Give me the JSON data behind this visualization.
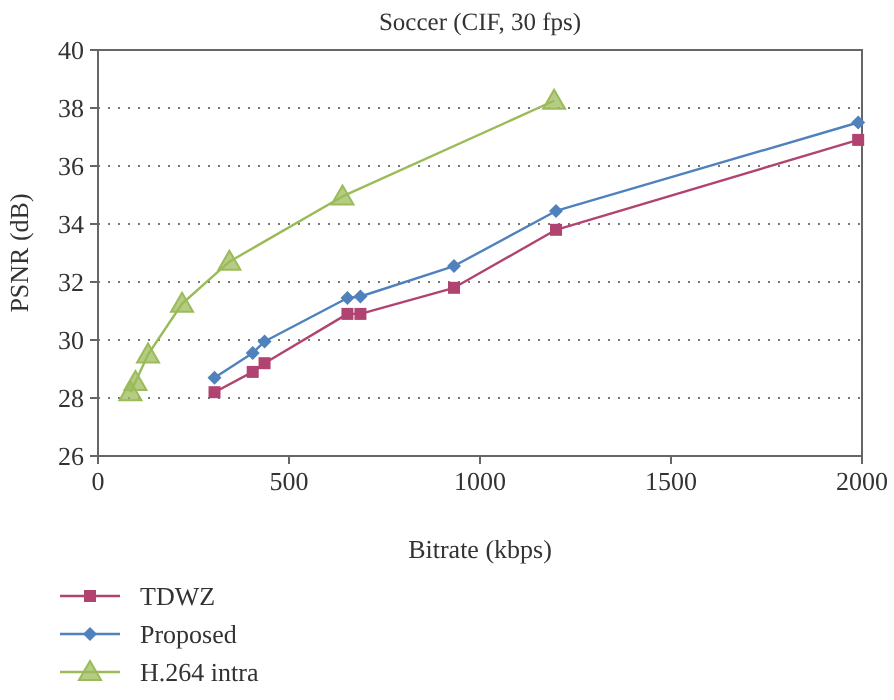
{
  "chart_data": {
    "type": "line",
    "title": "Soccer (CIF, 30 fps)",
    "xlabel": "Bitrate (kbps)",
    "ylabel": "PSNR (dB)",
    "xlim": [
      0,
      2000
    ],
    "xticks": [
      0,
      500,
      1000,
      1500,
      2000
    ],
    "ylim": [
      26,
      40
    ],
    "yticks": [
      26,
      28,
      30,
      32,
      34,
      36,
      38,
      40
    ],
    "grid": "y",
    "legend": "bottom",
    "series": [
      {
        "name": "TDWZ",
        "color": "#b0436f",
        "marker": "square",
        "x": [
          305,
          405,
          436,
          653,
          687,
          932,
          1199,
          1990
        ],
        "values": [
          28.2,
          28.9,
          29.2,
          30.9,
          30.9,
          31.8,
          33.8,
          36.9
        ]
      },
      {
        "name": "Proposed",
        "color": "#4f81bd",
        "marker": "diamond",
        "x": [
          305,
          405,
          436,
          653,
          687,
          932,
          1199,
          1990
        ],
        "values": [
          28.7,
          29.55,
          29.95,
          31.45,
          31.5,
          32.55,
          34.45,
          37.5
        ]
      },
      {
        "name": "H.264 intra",
        "color": "#9bbb59",
        "marker": "triangle",
        "x": [
          85,
          98,
          131,
          220,
          344,
          640,
          1194
        ],
        "values": [
          28.2,
          28.55,
          29.5,
          31.25,
          32.7,
          34.95,
          38.25
        ]
      }
    ]
  }
}
